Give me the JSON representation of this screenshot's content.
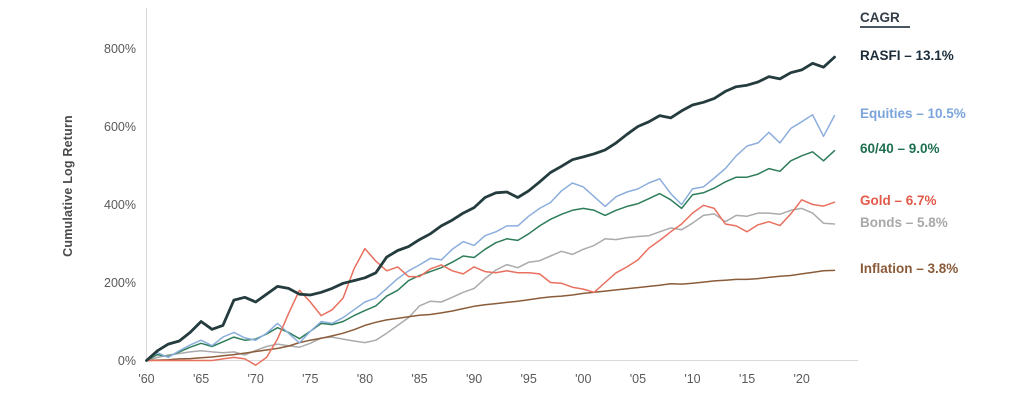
{
  "chart_data": {
    "type": "line",
    "title": "",
    "xlabel": "",
    "ylabel": "Cumulative Log Return",
    "legend_header": "CAGR",
    "legend_position": "right",
    "grid": false,
    "xlim": [
      1960,
      2023
    ],
    "ylim": [
      0,
      800
    ],
    "x_years": [
      1960,
      1961,
      1962,
      1963,
      1964,
      1965,
      1966,
      1967,
      1968,
      1969,
      1970,
      1971,
      1972,
      1973,
      1974,
      1975,
      1976,
      1977,
      1978,
      1979,
      1980,
      1981,
      1982,
      1983,
      1984,
      1985,
      1986,
      1987,
      1988,
      1989,
      1990,
      1991,
      1992,
      1993,
      1994,
      1995,
      1996,
      1997,
      1998,
      1999,
      2000,
      2001,
      2002,
      2003,
      2004,
      2005,
      2006,
      2007,
      2008,
      2009,
      2010,
      2011,
      2012,
      2013,
      2014,
      2015,
      2016,
      2017,
      2018,
      2019,
      2020,
      2021,
      2022,
      2023
    ],
    "yticks": [
      {
        "value": 0,
        "label": "0%"
      },
      {
        "value": 200,
        "label": "200%"
      },
      {
        "value": 400,
        "label": "400%"
      },
      {
        "value": 600,
        "label": "600%"
      },
      {
        "value": 800,
        "label": "800%"
      }
    ],
    "xticks": [
      {
        "value": 1960,
        "label": "'60"
      },
      {
        "value": 1965,
        "label": "'65"
      },
      {
        "value": 1970,
        "label": "'70"
      },
      {
        "value": 1975,
        "label": "'75"
      },
      {
        "value": 1980,
        "label": "'80"
      },
      {
        "value": 1985,
        "label": "'85"
      },
      {
        "value": 1990,
        "label": "'90"
      },
      {
        "value": 1995,
        "label": "'95"
      },
      {
        "value": 2000,
        "label": "'00"
      },
      {
        "value": 2005,
        "label": "'05"
      },
      {
        "value": 2010,
        "label": "'10"
      },
      {
        "value": 2015,
        "label": "'15"
      },
      {
        "value": 2020,
        "label": "'20"
      }
    ],
    "series": [
      {
        "name": "RASFI",
        "cagr": "13.1%",
        "legend_label": "RASFI – 13.1%",
        "line_color": "#253c3e",
        "label_color": "#1d2d3a",
        "emphasis": true,
        "values": [
          0,
          25,
          42,
          50,
          72,
          100,
          80,
          90,
          155,
          162,
          150,
          170,
          190,
          185,
          170,
          168,
          175,
          185,
          198,
          205,
          212,
          225,
          265,
          282,
          292,
          310,
          325,
          345,
          360,
          378,
          392,
          418,
          430,
          432,
          418,
          435,
          458,
          482,
          498,
          515,
          522,
          530,
          540,
          558,
          580,
          600,
          612,
          628,
          622,
          640,
          655,
          662,
          672,
          690,
          702,
          706,
          714,
          728,
          722,
          738,
          745,
          762,
          752,
          778
        ]
      },
      {
        "name": "Equities",
        "cagr": "10.5%",
        "legend_label": "Equities – 10.5%",
        "line_color": "#8caedd",
        "label_color": "#7ba4db",
        "emphasis": false,
        "values": [
          0,
          20,
          8,
          25,
          40,
          52,
          38,
          60,
          72,
          58,
          52,
          70,
          95,
          70,
          45,
          75,
          100,
          95,
          110,
          130,
          150,
          160,
          185,
          210,
          230,
          245,
          262,
          258,
          285,
          305,
          295,
          320,
          330,
          345,
          345,
          370,
          390,
          405,
          435,
          455,
          445,
          420,
          395,
          420,
          432,
          440,
          455,
          466,
          428,
          400,
          440,
          445,
          468,
          492,
          525,
          550,
          558,
          585,
          558,
          595,
          612,
          630,
          575,
          628
        ]
      },
      {
        "name": "60/40",
        "cagr": "9.0%",
        "legend_label": "60/40 – 9.0%",
        "line_color": "#2e7d5a",
        "label_color": "#1e7051",
        "emphasis": false,
        "values": [
          0,
          15,
          10,
          22,
          34,
          44,
          36,
          48,
          60,
          52,
          55,
          68,
          84,
          72,
          56,
          75,
          95,
          92,
          100,
          115,
          128,
          140,
          165,
          180,
          205,
          218,
          228,
          238,
          252,
          268,
          264,
          285,
          302,
          312,
          308,
          325,
          345,
          362,
          375,
          385,
          390,
          385,
          372,
          385,
          395,
          402,
          415,
          428,
          412,
          390,
          425,
          430,
          442,
          458,
          470,
          470,
          478,
          492,
          485,
          512,
          525,
          535,
          512,
          538
        ]
      },
      {
        "name": "Gold",
        "cagr": "6.7%",
        "legend_label": "Gold – 6.7%",
        "line_color": "#e8705f",
        "label_color": "#e25b4a",
        "emphasis": false,
        "values": [
          0,
          0,
          0,
          0,
          0,
          0,
          0,
          4,
          8,
          4,
          -12,
          8,
          55,
          120,
          180,
          150,
          115,
          130,
          160,
          235,
          287,
          255,
          230,
          240,
          215,
          215,
          235,
          245,
          230,
          222,
          240,
          228,
          225,
          230,
          225,
          225,
          222,
          200,
          198,
          188,
          183,
          175,
          200,
          225,
          240,
          258,
          288,
          308,
          330,
          350,
          378,
          398,
          390,
          350,
          345,
          330,
          348,
          356,
          346,
          376,
          412,
          400,
          396,
          406
        ]
      },
      {
        "name": "Bonds",
        "cagr": "5.8%",
        "legend_label": "Bonds – 5.8%",
        "line_color": "#ababab",
        "label_color": "#a8a8a8",
        "emphasis": false,
        "values": [
          0,
          8,
          14,
          18,
          22,
          25,
          22,
          20,
          22,
          14,
          26,
          36,
          42,
          38,
          34,
          44,
          58,
          60,
          55,
          50,
          46,
          52,
          70,
          90,
          110,
          140,
          152,
          150,
          162,
          175,
          185,
          210,
          232,
          246,
          238,
          252,
          256,
          268,
          280,
          272,
          285,
          295,
          312,
          310,
          315,
          318,
          320,
          330,
          340,
          335,
          352,
          372,
          376,
          356,
          372,
          370,
          378,
          378,
          375,
          385,
          390,
          378,
          352,
          350
        ]
      },
      {
        "name": "Inflation",
        "cagr": "3.8%",
        "legend_label": "Inflation – 3.8%",
        "line_color": "#8b5c3a",
        "label_color": "#8a5b3a",
        "emphasis": false,
        "values": [
          0,
          1,
          2,
          4,
          5,
          7,
          9,
          12,
          15,
          19,
          23,
          27,
          31,
          37,
          46,
          52,
          57,
          63,
          70,
          79,
          90,
          98,
          104,
          108,
          112,
          116,
          118,
          122,
          127,
          133,
          139,
          143,
          146,
          149,
          152,
          156,
          160,
          163,
          165,
          168,
          172,
          175,
          178,
          181,
          184,
          187,
          190,
          193,
          197,
          196,
          198,
          201,
          204,
          206,
          208,
          208,
          210,
          213,
          216,
          218,
          222,
          226,
          230,
          231
        ]
      }
    ]
  }
}
